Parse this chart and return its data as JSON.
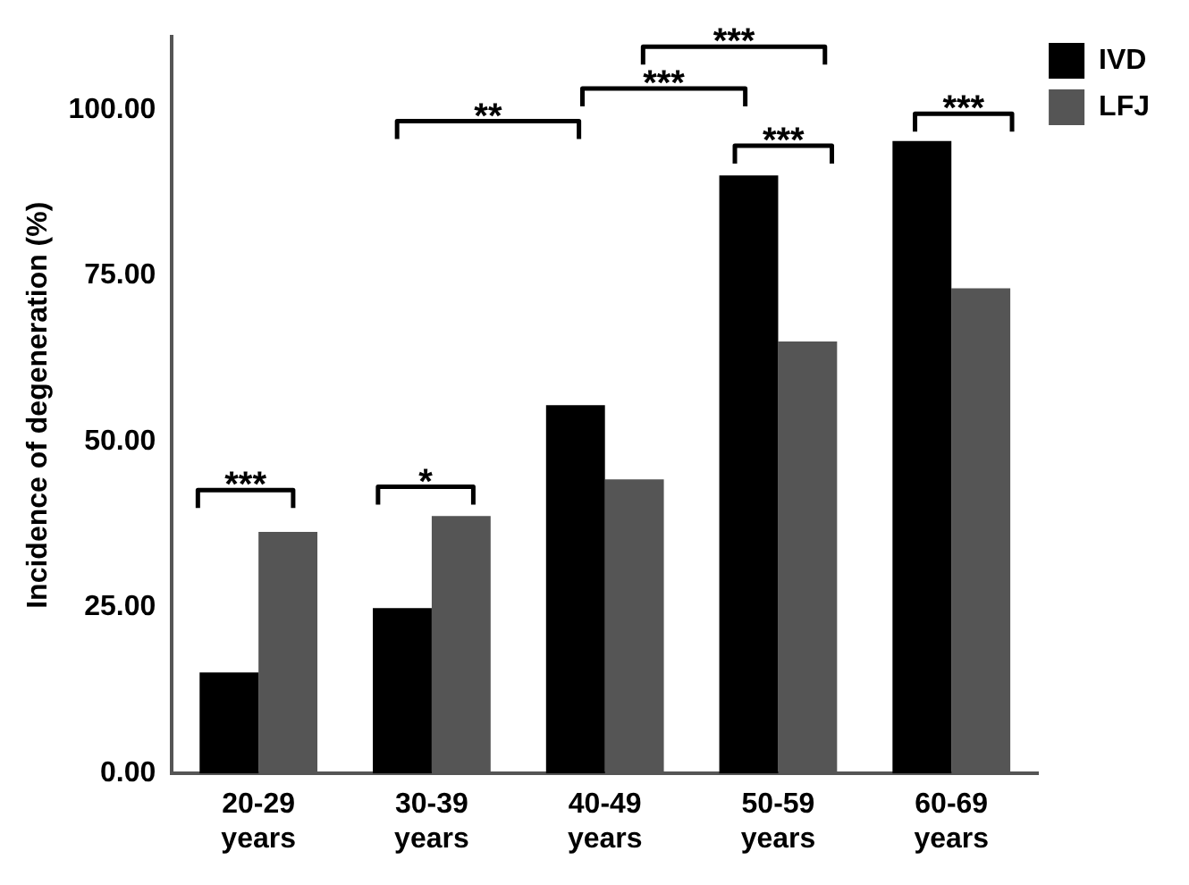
{
  "chart_data": {
    "type": "bar",
    "ylabel": "Incidence of degeneration (%)",
    "categories": [
      "20-29 years",
      "30-39 years",
      "40-49 years",
      "50-59 years",
      "60-69 years"
    ],
    "series": [
      {
        "name": "IVD",
        "color": "#000000",
        "values": [
          15.2,
          24.9,
          55.5,
          90.1,
          95.3
        ]
      },
      {
        "name": "LFJ",
        "color": "#555555",
        "values": [
          36.4,
          38.8,
          44.3,
          65.1,
          73.1
        ]
      }
    ],
    "ylim": [
      0,
      111
    ],
    "yticks": [
      {
        "value": 0,
        "label": "0.00"
      },
      {
        "value": 25,
        "label": "25.00"
      },
      {
        "value": 50,
        "label": "50.00"
      },
      {
        "value": 75,
        "label": "75.00"
      },
      {
        "value": 100,
        "label": "100.00"
      }
    ],
    "grid": false,
    "legend": "top right",
    "annotations": [
      "***",
      "*",
      "**",
      "***",
      "***",
      "***",
      "***"
    ]
  }
}
